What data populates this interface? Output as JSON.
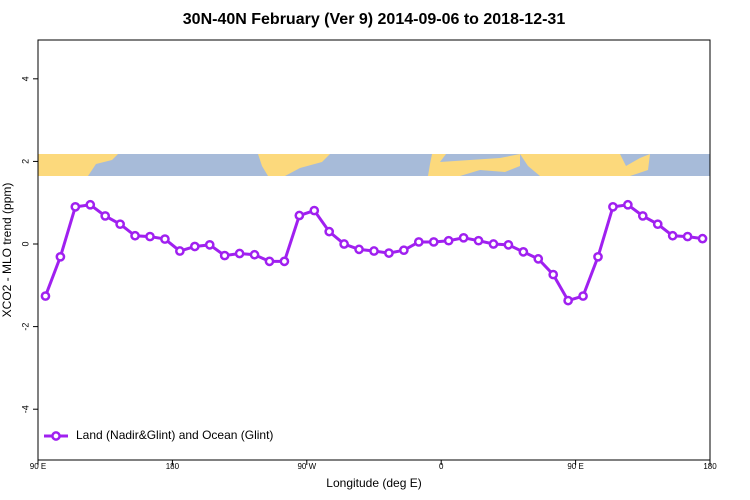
{
  "chart_data": {
    "type": "line",
    "title": "30N-40N February (Ver 9)   2014-09-06 to 2018-12-31",
    "xlabel": "Longitude (deg E)",
    "ylabel": "XCO2 - MLO trend (ppm)",
    "x": [
      95,
      105,
      115,
      125,
      135,
      145,
      155,
      165,
      175,
      185,
      195,
      205,
      215,
      225,
      235,
      245,
      255,
      265,
      275,
      285,
      295,
      305,
      315,
      325,
      335,
      345,
      355,
      365,
      375,
      385,
      395,
      405,
      415,
      425,
      435,
      445,
      455,
      465,
      475,
      485,
      495,
      505,
      515,
      525,
      535
    ],
    "series": [
      {
        "name": "Land (Nadir&Glint) and Ocean (Glint)",
        "color": "#a020f0",
        "values": [
          -1.26,
          -0.31,
          0.9,
          0.95,
          0.68,
          0.48,
          0.2,
          0.18,
          0.12,
          -0.17,
          -0.06,
          -0.02,
          -0.28,
          -0.23,
          -0.26,
          -0.42,
          -0.42,
          0.69,
          0.81,
          0.3,
          0.0,
          -0.13,
          -0.17,
          -0.22,
          -0.15,
          0.05,
          0.05,
          0.08,
          0.15,
          0.08,
          0.0,
          -0.02,
          -0.19,
          -0.36,
          -0.74,
          -1.37,
          -1.26,
          -0.31,
          0.9,
          0.95,
          0.68,
          0.48,
          0.2,
          0.18,
          0.13
        ]
      }
    ],
    "xlim": [
      90,
      540
    ],
    "xticks": [
      {
        "value": 90,
        "label": "90 E"
      },
      180,
      {
        "value": 270,
        "label": "90 W"
      },
      {
        "value": 360,
        "label": "0"
      },
      {
        "value": 450,
        "label": "90 E"
      },
      {
        "value": 540,
        "label": "180"
      }
    ],
    "ylim": [
      -5.23,
      4.94
    ],
    "yticks": [
      -4,
      -2,
      0,
      2,
      4
    ],
    "legend": "bottom-left"
  }
}
